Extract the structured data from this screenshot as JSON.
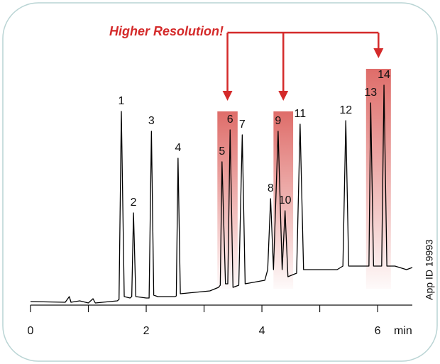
{
  "chart_data": {
    "type": "line",
    "annotation": "Higher Resolution!",
    "side_note": "App ID 19993",
    "xlabel": "min",
    "color": "#000000",
    "x": [
      0,
      0.6,
      0.67,
      0.7,
      0.85,
      1.0,
      1.08,
      1.12,
      1.5,
      1.53,
      1.57,
      1.62,
      1.72,
      1.75,
      1.78,
      1.82,
      2.0,
      2.05,
      2.09,
      2.13,
      2.2,
      2.5,
      2.52,
      2.55,
      2.59,
      3.1,
      3.25,
      3.28,
      3.31,
      3.37,
      3.41,
      3.45,
      3.5,
      3.6,
      3.66,
      3.71,
      4.05,
      4.1,
      4.15,
      4.2,
      4.28,
      4.35,
      4.4,
      4.45,
      4.6,
      4.66,
      4.72,
      5.3,
      5.4,
      5.45,
      5.5,
      5.85,
      5.88,
      5.93,
      6.07,
      6.11,
      6.16,
      6.3,
      6.5,
      6.6
    ],
    "values": [
      5,
      4,
      12,
      4,
      6,
      3,
      9,
      3,
      6,
      8,
      273,
      12,
      10,
      12,
      130,
      12,
      10,
      10,
      245,
      14,
      12,
      12,
      13,
      207,
      16,
      20,
      25,
      28,
      202,
      30,
      30,
      247,
      25,
      28,
      240,
      30,
      35,
      50,
      150,
      50,
      245,
      50,
      133,
      40,
      45,
      255,
      50,
      50,
      55,
      260,
      55,
      55,
      285,
      55,
      55,
      310,
      55,
      55,
      50,
      53
    ],
    "peaks": [
      {
        "label": "1",
        "x": 1.57,
        "value": 273
      },
      {
        "label": "2",
        "x": 1.78,
        "value": 130
      },
      {
        "label": "3",
        "x": 2.09,
        "value": 245
      },
      {
        "label": "4",
        "x": 2.55,
        "value": 207
      },
      {
        "label": "5",
        "x": 3.31,
        "value": 202
      },
      {
        "label": "6",
        "x": 3.45,
        "value": 247
      },
      {
        "label": "7",
        "x": 3.66,
        "value": 240
      },
      {
        "label": "8",
        "x": 4.15,
        "value": 150
      },
      {
        "label": "9",
        "x": 4.28,
        "value": 245
      },
      {
        "label": "10",
        "x": 4.4,
        "value": 133
      },
      {
        "label": "11",
        "x": 4.66,
        "value": 255
      },
      {
        "label": "12",
        "x": 5.45,
        "value": 260
      },
      {
        "label": "13",
        "x": 5.88,
        "value": 285
      },
      {
        "label": "14",
        "x": 6.11,
        "value": 310
      }
    ],
    "highlights": [
      [
        3.23,
        3.58
      ],
      [
        4.2,
        4.54
      ],
      [
        5.8,
        6.23
      ]
    ],
    "highlight_color": "#d9534f",
    "annotation_color": "#d42a2a",
    "xlim": [
      0,
      6.6
    ],
    "xticks": [
      0,
      2,
      4,
      6
    ],
    "xminorticks": [
      1,
      3,
      5
    ],
    "ylim": [
      0,
      340
    ]
  }
}
